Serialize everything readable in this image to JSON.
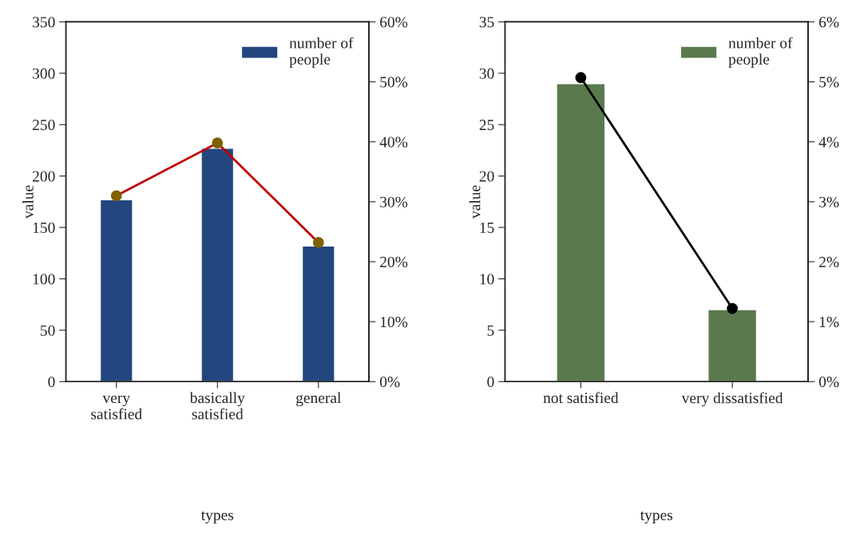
{
  "chart_data": [
    {
      "type": "bar",
      "categories": [
        "very\nsatisfied",
        "basically\nsatisfied",
        "general"
      ],
      "xlabel": "types",
      "ylabel": "value",
      "ylim": [
        0,
        350
      ],
      "yticks": [
        0,
        50,
        100,
        150,
        200,
        250,
        300,
        350
      ],
      "y2lim": [
        0,
        60
      ],
      "y2ticks": [
        {
          "value": 0,
          "label": "0%"
        },
        {
          "value": 10,
          "label": "10%"
        },
        {
          "value": 20,
          "label": "20%"
        },
        {
          "value": 30,
          "label": "30%"
        },
        {
          "value": 40,
          "label": "40%"
        },
        {
          "value": 50,
          "label": "50%"
        },
        {
          "value": 60,
          "label": "60%"
        }
      ],
      "legend": "top right",
      "grid": false,
      "series": [
        {
          "name": "number of\npeople",
          "color": "#23467f",
          "values": [
            177,
            227,
            132
          ]
        },
        {
          "type": "line",
          "axis": "y2",
          "color": "#c00000",
          "colors": [
            "#7f6000",
            "#7f6000",
            "#7f6000"
          ],
          "marker": "circle",
          "values": [
            31.0,
            39.8,
            23.2
          ]
        }
      ]
    },
    {
      "type": "bar",
      "categories": [
        "not satisfied",
        "very dissatisfied"
      ],
      "xlabel": "types",
      "ylabel": "value",
      "ylim": [
        0,
        35
      ],
      "yticks": [
        0,
        5,
        10,
        15,
        20,
        25,
        30,
        35
      ],
      "y2lim": [
        0,
        6
      ],
      "y2ticks": [
        {
          "value": 0,
          "label": "0%"
        },
        {
          "value": 1,
          "label": "1%"
        },
        {
          "value": 2,
          "label": "2%"
        },
        {
          "value": 3,
          "label": "3%"
        },
        {
          "value": 4,
          "label": "4%"
        },
        {
          "value": 5,
          "label": "5%"
        },
        {
          "value": 6,
          "label": "6%"
        }
      ],
      "legend": "top right",
      "grid": false,
      "series": [
        {
          "name": "number of\npeople",
          "color": "#5a7a4e",
          "values": [
            29,
            7
          ]
        },
        {
          "type": "line",
          "axis": "y2",
          "color": "#000000",
          "colors": [
            "#000000",
            "#000000"
          ],
          "marker": "circle",
          "values": [
            5.07,
            1.22
          ]
        }
      ]
    }
  ]
}
